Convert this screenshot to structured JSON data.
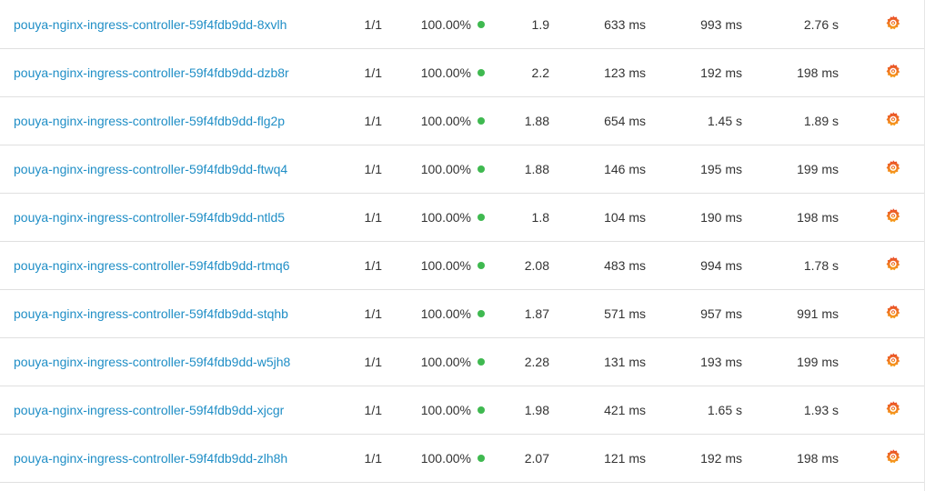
{
  "accent": "#1f8ec6",
  "status_color": "#3fb950",
  "rows": [
    {
      "name": "pouya-nginx-ingress-controller-59f4fdb9dd-8xvlh",
      "meshed": "1/1",
      "success_rate": "100.00%",
      "rps": "1.9",
      "p50": "633 ms",
      "p95": "993 ms",
      "p99": "2.76 s",
      "dashboard_icon": "grafana-icon"
    },
    {
      "name": "pouya-nginx-ingress-controller-59f4fdb9dd-dzb8r",
      "meshed": "1/1",
      "success_rate": "100.00%",
      "rps": "2.2",
      "p50": "123 ms",
      "p95": "192 ms",
      "p99": "198 ms",
      "dashboard_icon": "grafana-icon"
    },
    {
      "name": "pouya-nginx-ingress-controller-59f4fdb9dd-flg2p",
      "meshed": "1/1",
      "success_rate": "100.00%",
      "rps": "1.88",
      "p50": "654 ms",
      "p95": "1.45 s",
      "p99": "1.89 s",
      "dashboard_icon": "grafana-icon"
    },
    {
      "name": "pouya-nginx-ingress-controller-59f4fdb9dd-ftwq4",
      "meshed": "1/1",
      "success_rate": "100.00%",
      "rps": "1.88",
      "p50": "146 ms",
      "p95": "195 ms",
      "p99": "199 ms",
      "dashboard_icon": "grafana-icon"
    },
    {
      "name": "pouya-nginx-ingress-controller-59f4fdb9dd-ntld5",
      "meshed": "1/1",
      "success_rate": "100.00%",
      "rps": "1.8",
      "p50": "104 ms",
      "p95": "190 ms",
      "p99": "198 ms",
      "dashboard_icon": "grafana-icon"
    },
    {
      "name": "pouya-nginx-ingress-controller-59f4fdb9dd-rtmq6",
      "meshed": "1/1",
      "success_rate": "100.00%",
      "rps": "2.08",
      "p50": "483 ms",
      "p95": "994 ms",
      "p99": "1.78 s",
      "dashboard_icon": "grafana-icon"
    },
    {
      "name": "pouya-nginx-ingress-controller-59f4fdb9dd-stqhb",
      "meshed": "1/1",
      "success_rate": "100.00%",
      "rps": "1.87",
      "p50": "571 ms",
      "p95": "957 ms",
      "p99": "991 ms",
      "dashboard_icon": "grafana-icon"
    },
    {
      "name": "pouya-nginx-ingress-controller-59f4fdb9dd-w5jh8",
      "meshed": "1/1",
      "success_rate": "100.00%",
      "rps": "2.28",
      "p50": "131 ms",
      "p95": "193 ms",
      "p99": "199 ms",
      "dashboard_icon": "grafana-icon"
    },
    {
      "name": "pouya-nginx-ingress-controller-59f4fdb9dd-xjcgr",
      "meshed": "1/1",
      "success_rate": "100.00%",
      "rps": "1.98",
      "p50": "421 ms",
      "p95": "1.65 s",
      "p99": "1.93 s",
      "dashboard_icon": "grafana-icon"
    },
    {
      "name": "pouya-nginx-ingress-controller-59f4fdb9dd-zlh8h",
      "meshed": "1/1",
      "success_rate": "100.00%",
      "rps": "2.07",
      "p50": "121 ms",
      "p95": "192 ms",
      "p99": "198 ms",
      "dashboard_icon": "grafana-icon"
    }
  ]
}
